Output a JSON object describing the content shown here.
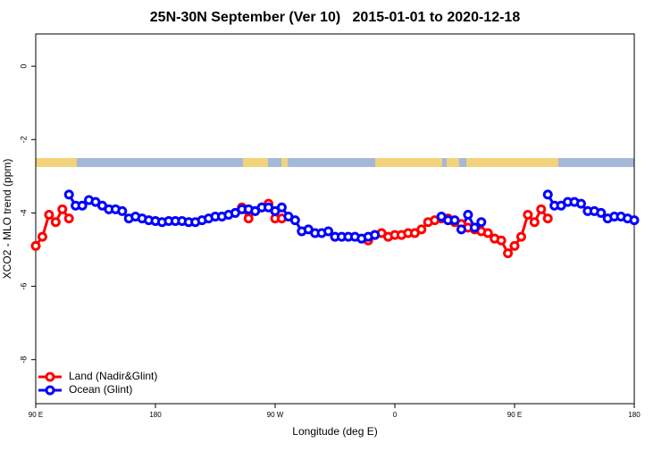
{
  "chart_data": {
    "type": "line",
    "title": "25N-30N September (Ver 10)   2015-01-01 to 2020-12-18",
    "xlabel": "Longitude (deg E)",
    "ylabel": "XCO2 - MLO trend (ppm)",
    "x": [
      90,
      95,
      100,
      105,
      110,
      115,
      120,
      125,
      130,
      135,
      140,
      145,
      150,
      155,
      160,
      165,
      170,
      175,
      180,
      185,
      190,
      195,
      200,
      205,
      210,
      215,
      220,
      225,
      230,
      235,
      240,
      245,
      250,
      255,
      260,
      265,
      270,
      275,
      280,
      285,
      290,
      295,
      300,
      305,
      310,
      315,
      320,
      325,
      330,
      335,
      340,
      345,
      350,
      355,
      360,
      365,
      370,
      375,
      380,
      385,
      390,
      395,
      400,
      405,
      410,
      415,
      420,
      425,
      430,
      435,
      440,
      445,
      450,
      455,
      460,
      465,
      470,
      475,
      480,
      485,
      490,
      495,
      500,
      505,
      510,
      515,
      520,
      525,
      530,
      535,
      540
    ],
    "series": [
      {
        "name": "Land (Nadir&Glint)",
        "color": "#ff0000",
        "values": [
          -4.9,
          -4.65,
          -4.05,
          -4.25,
          -3.9,
          -4.15,
          null,
          null,
          null,
          null,
          null,
          null,
          null,
          null,
          null,
          null,
          null,
          null,
          null,
          null,
          null,
          null,
          null,
          null,
          null,
          null,
          null,
          null,
          null,
          null,
          null,
          -3.85,
          -4.15,
          -3.95,
          -3.85,
          -3.75,
          -4.15,
          -4.15,
          null,
          null,
          null,
          null,
          null,
          null,
          null,
          null,
          null,
          null,
          null,
          null,
          -4.75,
          -4.6,
          -4.55,
          -4.65,
          -4.6,
          -4.6,
          -4.55,
          -4.55,
          -4.45,
          -4.25,
          -4.2,
          -4.15,
          -4.15,
          -4.25,
          -4.3,
          -4.4,
          -4.45,
          -4.5,
          -4.55,
          -4.7,
          -4.75,
          -5.1,
          -4.9,
          -4.65,
          -4.05,
          -4.25,
          -3.9,
          -4.15,
          null,
          null,
          null,
          null,
          null,
          null,
          null,
          null,
          null,
          null,
          null,
          null,
          null
        ]
      },
      {
        "name": "Ocean (Glint)",
        "color": "#0000ff",
        "values": [
          null,
          null,
          null,
          null,
          null,
          -3.5,
          -3.8,
          -3.8,
          -3.65,
          -3.7,
          -3.8,
          -3.9,
          -3.9,
          -3.95,
          -4.15,
          -4.1,
          -4.15,
          -4.2,
          -4.22,
          -4.25,
          -4.22,
          -4.22,
          -4.22,
          -4.25,
          -4.25,
          -4.2,
          -4.15,
          -4.1,
          -4.1,
          -4.05,
          -4.0,
          -3.9,
          -3.9,
          -3.95,
          -3.85,
          -3.85,
          -3.95,
          -3.85,
          -4.1,
          -4.2,
          -4.5,
          -4.45,
          -4.55,
          -4.55,
          -4.5,
          -4.65,
          -4.65,
          -4.65,
          -4.65,
          -4.7,
          -4.65,
          -4.6,
          null,
          null,
          null,
          null,
          null,
          null,
          null,
          null,
          null,
          -4.1,
          -4.2,
          -4.2,
          -4.45,
          -4.05,
          -4.4,
          -4.25,
          null,
          null,
          null,
          null,
          null,
          null,
          null,
          null,
          null,
          -3.5,
          -3.8,
          -3.8,
          -3.7,
          -3.7,
          -3.75,
          -3.95,
          -3.95,
          -4.0,
          -4.15,
          -4.1,
          -4.1,
          -4.15,
          -4.2
        ]
      }
    ],
    "xlim": [
      90,
      540
    ],
    "xticks": [
      {
        "value": 90,
        "label": "90 E"
      },
      180,
      {
        "value": 270,
        "label": "90 W"
      },
      {
        "value": 360,
        "label": "0"
      },
      {
        "value": 450,
        "label": "90 E"
      },
      {
        "value": 540,
        "label": "180"
      }
    ],
    "ylim": [
      -9.2,
      0.88
    ],
    "yticks": [
      0,
      -2,
      -4,
      -6,
      -8
    ],
    "legend": "bottomleft"
  }
}
